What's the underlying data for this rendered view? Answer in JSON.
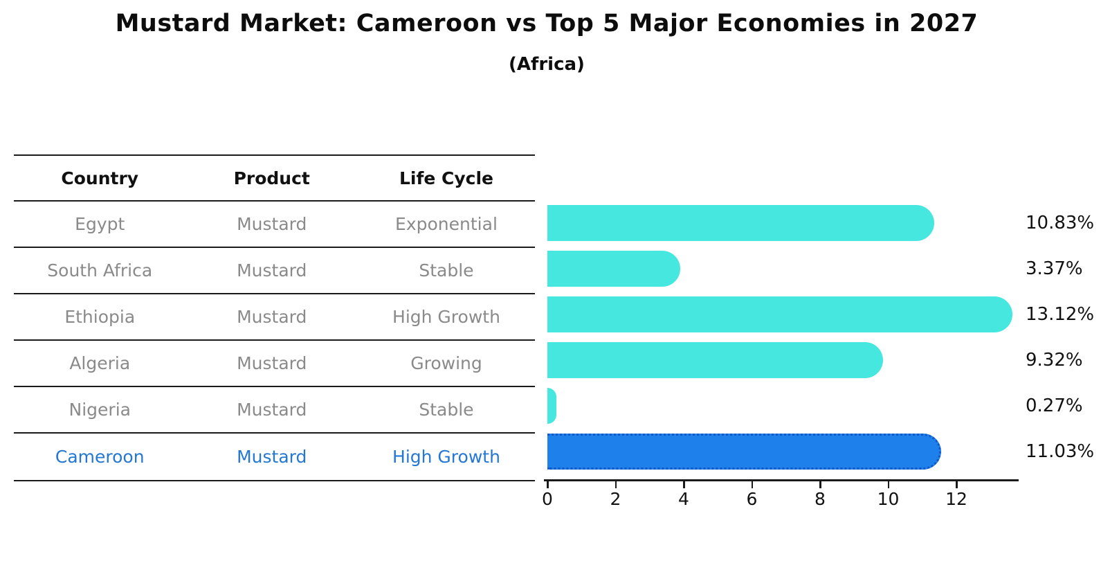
{
  "title": "Mustard Market: Cameroon vs Top 5 Major Economies in 2027",
  "subtitle": "(Africa)",
  "colors": {
    "bar": "#46e7df",
    "highlight_bar": "#1e80ea",
    "highlight_bar_border": "#1257c8",
    "highlight_text": "#2478d4",
    "table_text": "#8a8a8a",
    "header_text": "#111111",
    "line": "#1a1a1a"
  },
  "table": {
    "headers": [
      "Country",
      "Product",
      "Life Cycle"
    ],
    "rows": [
      {
        "country": "Egypt",
        "product": "Mustard",
        "life_cycle": "Exponential",
        "highlight": false
      },
      {
        "country": "South Africa",
        "product": "Mustard",
        "life_cycle": "Stable",
        "highlight": false
      },
      {
        "country": "Ethiopia",
        "product": "Mustard",
        "life_cycle": "High Growth",
        "highlight": false
      },
      {
        "country": "Algeria",
        "product": "Mustard",
        "life_cycle": "Growing",
        "highlight": false
      },
      {
        "country": "Nigeria",
        "product": "Mustard",
        "life_cycle": "Stable",
        "highlight": false
      },
      {
        "country": "Cameroon",
        "product": "Mustard",
        "life_cycle": "High Growth",
        "highlight": true
      }
    ]
  },
  "chart_data": {
    "type": "bar",
    "orientation": "horizontal",
    "title": "Mustard Market: Cameroon vs Top 5 Major Economies in 2027",
    "subtitle": "(Africa)",
    "categories": [
      "Egypt",
      "South Africa",
      "Ethiopia",
      "Algeria",
      "Nigeria",
      "Cameroon"
    ],
    "values": [
      10.83,
      3.37,
      13.12,
      9.32,
      0.27,
      11.03
    ],
    "value_labels": [
      "10.83%",
      "3.37%",
      "13.12%",
      "9.32%",
      "0.27%",
      "11.03%"
    ],
    "highlight_index": 5,
    "xlabel": "",
    "ylabel": "",
    "xlim": [
      0,
      13.85
    ],
    "xticks": [
      0,
      2,
      4,
      6,
      8,
      10,
      12
    ],
    "grid": false,
    "legend": false
  }
}
